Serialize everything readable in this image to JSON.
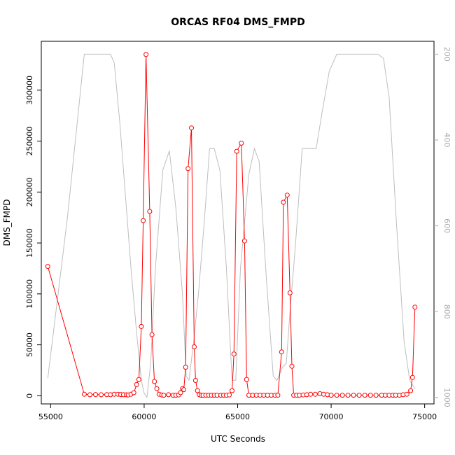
{
  "chart_data": {
    "type": "line",
    "title": "ORCAS RF04 DMS_FMPD",
    "xlabel": "UTC Seconds",
    "ylabel": "DMS_FMPD",
    "xlim": [
      54500,
      75500
    ],
    "ylim": [
      -8000,
      348000
    ],
    "x_ticks": [
      55000,
      60000,
      65000,
      70000,
      75000
    ],
    "x_tick_labels": [
      "55000",
      "60000",
      "65000",
      "70000",
      "75000"
    ],
    "y_ticks": [
      0,
      50000,
      100000,
      150000,
      200000,
      250000,
      300000
    ],
    "y_tick_labels": [
      "0",
      "50000",
      "100000",
      "150000",
      "200000",
      "250000",
      "300000"
    ],
    "y2lim": [
      1015,
      170
    ],
    "y2_ticks": [
      200,
      400,
      600,
      800,
      1000
    ],
    "y2_tick_labels": [
      "200",
      "400",
      "600",
      "800",
      "1000"
    ],
    "grid": false,
    "colors": {
      "series": "#ff0000",
      "secondary": "#bebebe",
      "axis": "#000000",
      "right_axis": "#aaaaaa"
    },
    "series": [
      {
        "values": [
          [
            54850,
            127000
          ],
          [
            56800,
            1500
          ],
          [
            57100,
            1000
          ],
          [
            57400,
            1200
          ],
          [
            57700,
            1000
          ],
          [
            58000,
            1100
          ],
          [
            58200,
            1000
          ],
          [
            58400,
            1500
          ],
          [
            58600,
            1500
          ],
          [
            58750,
            1200
          ],
          [
            58900,
            1000
          ],
          [
            59050,
            900
          ],
          [
            59150,
            800
          ],
          [
            59300,
            1500
          ],
          [
            59450,
            3000
          ],
          [
            59600,
            11000
          ],
          [
            59720,
            16000
          ],
          [
            59850,
            68000
          ],
          [
            59950,
            172000
          ],
          [
            60100,
            335000
          ],
          [
            60300,
            181000
          ],
          [
            60420,
            60000
          ],
          [
            60550,
            14000
          ],
          [
            60680,
            7000
          ],
          [
            60800,
            1500
          ],
          [
            60950,
            800
          ],
          [
            61050,
            500
          ],
          [
            61300,
            1000
          ],
          [
            61550,
            500
          ],
          [
            61700,
            500
          ],
          [
            61850,
            800
          ],
          [
            61950,
            3000
          ],
          [
            62050,
            7000
          ],
          [
            62120,
            6000
          ],
          [
            62220,
            28000
          ],
          [
            62350,
            223000
          ],
          [
            62530,
            263000
          ],
          [
            62680,
            48000
          ],
          [
            62750,
            15000
          ],
          [
            62850,
            5000
          ],
          [
            62950,
            1000
          ],
          [
            63050,
            500
          ],
          [
            63150,
            500
          ],
          [
            63300,
            500
          ],
          [
            63450,
            500
          ],
          [
            63600,
            500
          ],
          [
            63750,
            500
          ],
          [
            63900,
            500
          ],
          [
            64100,
            500
          ],
          [
            64250,
            500
          ],
          [
            64400,
            500
          ],
          [
            64550,
            800
          ],
          [
            64700,
            5000
          ],
          [
            64800,
            41000
          ],
          [
            64950,
            240000
          ],
          [
            65200,
            248000
          ],
          [
            65370,
            152000
          ],
          [
            65480,
            16000
          ],
          [
            65600,
            500
          ],
          [
            65800,
            500
          ],
          [
            66000,
            500
          ],
          [
            66200,
            500
          ],
          [
            66400,
            500
          ],
          [
            66600,
            500
          ],
          [
            66800,
            500
          ],
          [
            67000,
            500
          ],
          [
            67150,
            500
          ],
          [
            67350,
            43000
          ],
          [
            67450,
            190000
          ],
          [
            67650,
            197000
          ],
          [
            67800,
            101000
          ],
          [
            67900,
            29000
          ],
          [
            68000,
            500
          ],
          [
            68150,
            500
          ],
          [
            68300,
            500
          ],
          [
            68500,
            800
          ],
          [
            68700,
            1000
          ],
          [
            68900,
            1500
          ],
          [
            69150,
            1500
          ],
          [
            69400,
            2000
          ],
          [
            69600,
            1500
          ],
          [
            69800,
            1000
          ],
          [
            70000,
            500
          ],
          [
            70300,
            500
          ],
          [
            70600,
            500
          ],
          [
            70900,
            500
          ],
          [
            71200,
            500
          ],
          [
            71500,
            500
          ],
          [
            71800,
            500
          ],
          [
            72100,
            500
          ],
          [
            72400,
            500
          ],
          [
            72700,
            500
          ],
          [
            72900,
            500
          ],
          [
            73100,
            500
          ],
          [
            73300,
            500
          ],
          [
            73450,
            500
          ],
          [
            73650,
            500
          ],
          [
            73850,
            1000
          ],
          [
            74050,
            1500
          ],
          [
            74250,
            5000
          ],
          [
            74350,
            18000
          ],
          [
            74480,
            87000
          ]
        ]
      }
    ],
    "secondary_series": {
      "axis": "right",
      "values": [
        [
          54850,
          955
        ],
        [
          55900,
          580
        ],
        [
          56800,
          200
        ],
        [
          57500,
          200
        ],
        [
          58200,
          200
        ],
        [
          58400,
          220
        ],
        [
          58700,
          360
        ],
        [
          59000,
          530
        ],
        [
          59300,
          700
        ],
        [
          59600,
          850
        ],
        [
          59850,
          960
        ],
        [
          60000,
          990
        ],
        [
          60150,
          1000
        ],
        [
          60350,
          920
        ],
        [
          60600,
          700
        ],
        [
          61000,
          470
        ],
        [
          61350,
          425
        ],
        [
          61700,
          560
        ],
        [
          62050,
          760
        ],
        [
          62250,
          950
        ],
        [
          62400,
          960
        ],
        [
          62650,
          870
        ],
        [
          62900,
          760
        ],
        [
          63200,
          600
        ],
        [
          63500,
          420
        ],
        [
          63750,
          420
        ],
        [
          64050,
          470
        ],
        [
          64400,
          700
        ],
        [
          64700,
          960
        ],
        [
          64900,
          960
        ],
        [
          65150,
          700
        ],
        [
          65600,
          480
        ],
        [
          65900,
          420
        ],
        [
          66150,
          450
        ],
        [
          66500,
          700
        ],
        [
          66900,
          950
        ],
        [
          67100,
          960
        ],
        [
          67400,
          930
        ],
        [
          67600,
          920
        ],
        [
          67800,
          800
        ],
        [
          68100,
          640
        ],
        [
          68450,
          420
        ],
        [
          68800,
          420
        ],
        [
          69200,
          420
        ],
        [
          69500,
          340
        ],
        [
          69900,
          240
        ],
        [
          70300,
          200
        ],
        [
          71000,
          200
        ],
        [
          71800,
          200
        ],
        [
          72500,
          200
        ],
        [
          72800,
          210
        ],
        [
          73100,
          300
        ],
        [
          73500,
          600
        ],
        [
          73900,
          870
        ],
        [
          74200,
          960
        ],
        [
          74480,
          980
        ]
      ]
    }
  }
}
